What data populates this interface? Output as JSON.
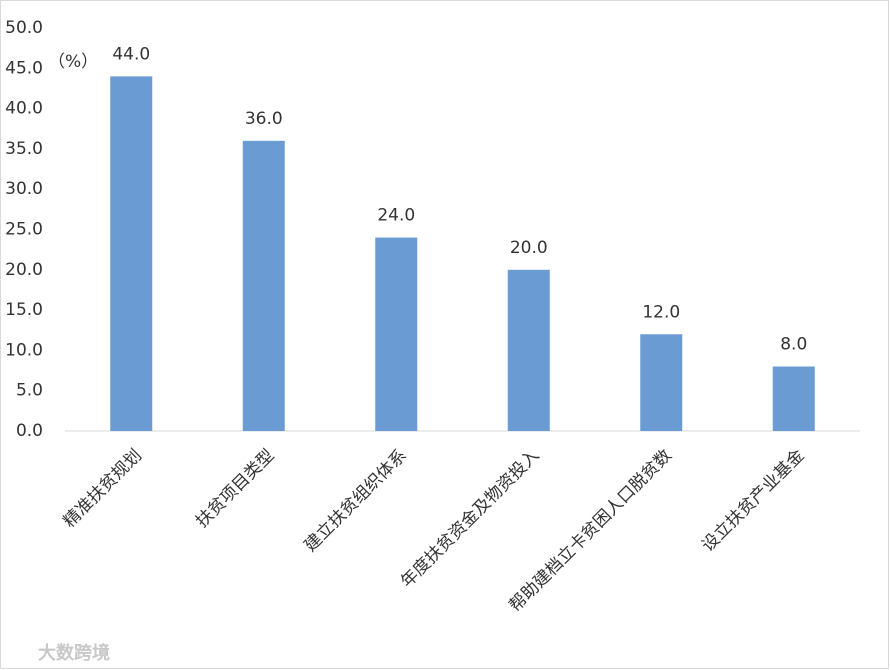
{
  "chart_data": {
    "type": "bar",
    "unit_label": "（%）",
    "watermark": "大数跨境",
    "categories": [
      "精准扶贫规划",
      "扶贫项目类型",
      "建立扶贫组织体系",
      "年度扶贫资金及物资投入",
      "帮助建档立卡贫困人口脱贫数",
      "设立扶贫产业基金"
    ],
    "values": [
      44,
      36,
      24,
      20,
      12,
      8
    ],
    "value_labels": [
      "44.0",
      "36.0",
      "24.0",
      "20.0",
      "12.0",
      "8.0"
    ],
    "color": "#6a9bd2",
    "ylim": [
      0,
      50
    ],
    "yticks": [
      {
        "value": 0,
        "label": "0.0"
      },
      {
        "value": 5,
        "label": "5.0"
      },
      {
        "value": 10,
        "label": "10.0"
      },
      {
        "value": 15,
        "label": "15.0"
      },
      {
        "value": 20,
        "label": "20.0"
      },
      {
        "value": 25,
        "label": "25.0"
      },
      {
        "value": 30,
        "label": "30.0"
      },
      {
        "value": 35,
        "label": "35.0"
      },
      {
        "value": 40,
        "label": "40.0"
      },
      {
        "value": 45,
        "label": "45.0"
      },
      {
        "value": 50,
        "label": "50.0"
      }
    ],
    "grid": false
  }
}
